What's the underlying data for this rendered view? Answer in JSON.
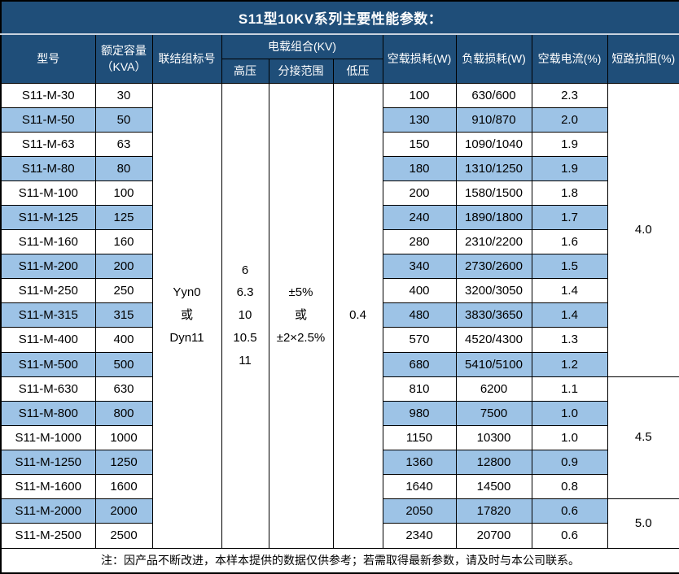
{
  "title": "S11型10KV系列主要性能参数：",
  "colors": {
    "header_bg": "#1F4E79",
    "header_text": "#FFFFFF",
    "stripe_bg": "#9DC3E6",
    "row_bg": "#FFFFFF",
    "border": "#000000"
  },
  "header": {
    "model": "型号",
    "capacity": "额定容量\n（KVA）",
    "connection": "联结组标号",
    "load_combo": "电载组合(KV)",
    "hv": "高压",
    "tap_range": "分接范围",
    "lv": "低压",
    "no_load_loss": "空载损耗(W)",
    "load_loss": "负载损耗(W)",
    "no_load_current": "空载电流(%)",
    "impedance": "短路抗阻(%)"
  },
  "merged": {
    "connection": "Yyn0\n或\nDyn11",
    "hv": "6\n6.3\n10\n10.5\n11",
    "tap_range": "±5%\n或\n±2×2.5%",
    "lv": "0.4"
  },
  "rows": [
    [
      "S11-M-30",
      "30",
      "100",
      "630/600",
      "2.3"
    ],
    [
      "S11-M-50",
      "50",
      "130",
      "910/870",
      "2.0"
    ],
    [
      "S11-M-63",
      "63",
      "150",
      "1090/1040",
      "1.9"
    ],
    [
      "S11-M-80",
      "80",
      "180",
      "1310/1250",
      "1.9"
    ],
    [
      "S11-M-100",
      "100",
      "200",
      "1580/1500",
      "1.8"
    ],
    [
      "S11-M-125",
      "125",
      "240",
      "1890/1800",
      "1.7"
    ],
    [
      "S11-M-160",
      "160",
      "280",
      "2310/2200",
      "1.6"
    ],
    [
      "S11-M-200",
      "200",
      "340",
      "2730/2600",
      "1.5"
    ],
    [
      "S11-M-250",
      "250",
      "400",
      "3200/3050",
      "1.4"
    ],
    [
      "S11-M-315",
      "315",
      "480",
      "3830/3650",
      "1.4"
    ],
    [
      "S11-M-400",
      "400",
      "570",
      "4520/4300",
      "1.3"
    ],
    [
      "S11-M-500",
      "500",
      "680",
      "5410/5100",
      "1.2"
    ],
    [
      "S11-M-630",
      "630",
      "810",
      "6200",
      "1.1"
    ],
    [
      "S11-M-800",
      "800",
      "980",
      "7500",
      "1.0"
    ],
    [
      "S11-M-1000",
      "1000",
      "1150",
      "10300",
      "1.0"
    ],
    [
      "S11-M-1250",
      "1250",
      "1360",
      "12800",
      "0.9"
    ],
    [
      "S11-M-1600",
      "1600",
      "1640",
      "14500",
      "0.8"
    ],
    [
      "S11-M-2000",
      "2000",
      "2050",
      "17820",
      "0.6"
    ],
    [
      "S11-M-2500",
      "2500",
      "2340",
      "20700",
      "0.6"
    ]
  ],
  "impedance_groups": [
    {
      "value": "4.0",
      "span": 12
    },
    {
      "value": "4.5",
      "span": 5
    },
    {
      "value": "5.0",
      "span": 2
    }
  ],
  "note": "注：因产品不断改进，本样本提供的数据仅供参考；若需取得最新参数，请及时与本公司联系。"
}
